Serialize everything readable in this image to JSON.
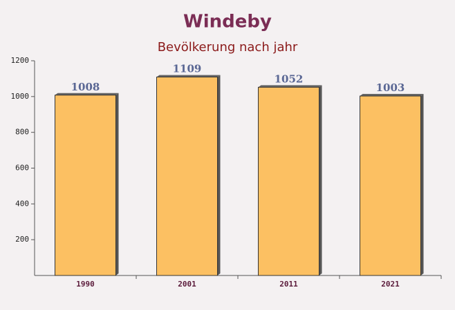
{
  "chart_data": {
    "type": "bar",
    "title": "Windeby",
    "subtitle": "Bevölkerung nach jahr",
    "categories": [
      "1990",
      "2001",
      "2011",
      "2021"
    ],
    "values": [
      1008,
      1109,
      1052,
      1003
    ],
    "color": "#fcc062",
    "ylim": [
      0,
      1200
    ],
    "yticks": [
      200,
      400,
      600,
      800,
      1000,
      1200
    ]
  }
}
